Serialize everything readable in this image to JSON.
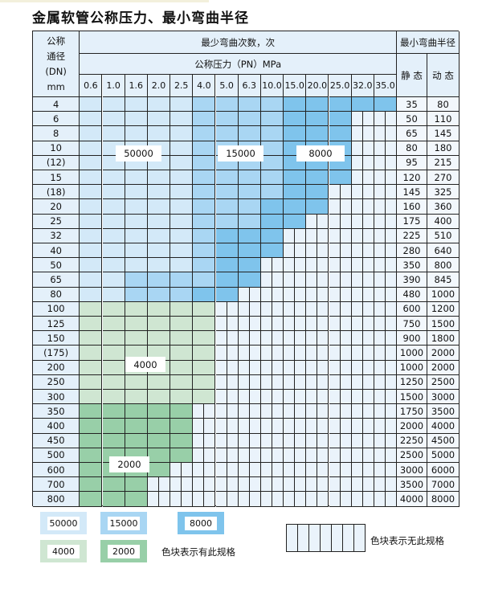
{
  "title": "金属软管公称压力、最小弯曲半径",
  "header": {
    "dn_label": [
      "公称",
      "通径",
      "(DN)",
      "mm"
    ],
    "bend_count": "最少弯曲次数，次",
    "pressure": "公称压力（PN）MPa",
    "radius": "最小弯曲半径",
    "static": "静 态",
    "dynamic": "动 态",
    "pressures": [
      "0.6",
      "1.0",
      "1.6",
      "2.0",
      "2.5",
      "4.0",
      "5.0",
      "6.3",
      "10.0",
      "15.0",
      "20.0",
      "25.0",
      "32.0",
      "35.0"
    ]
  },
  "levels": {
    "A": {
      "value": "50000",
      "color": "#d3e9f8"
    },
    "B": {
      "value": "15000",
      "color": "#a9d6f3"
    },
    "C": {
      "value": "8000",
      "color": "#7fc4ec"
    },
    "D": {
      "value": "4000",
      "color": "#cfe6d2"
    },
    "E": {
      "value": "2000",
      "color": "#98cfa8"
    }
  },
  "rows": [
    {
      "dn": "4",
      "static": "35",
      "dynamic": "80",
      "cells": "AAAAABBBBCCCCC"
    },
    {
      "dn": "6",
      "static": "50",
      "dynamic": "110",
      "cells": "AAAAABBBBCCC--"
    },
    {
      "dn": "8",
      "static": "65",
      "dynamic": "145",
      "cells": "AAAAABBBBCCC--"
    },
    {
      "dn": "10",
      "static": "80",
      "dynamic": "180",
      "cells": "AAAAABBBBCCC--"
    },
    {
      "dn": "(12)",
      "static": "95",
      "dynamic": "215",
      "cells": "AAAAABBBBCCC--"
    },
    {
      "dn": "15",
      "static": "120",
      "dynamic": "270",
      "cells": "AAAAABBBBCCC--"
    },
    {
      "dn": "(18)",
      "static": "145",
      "dynamic": "325",
      "cells": "AAAAABBBBCC---"
    },
    {
      "dn": "20",
      "static": "160",
      "dynamic": "360",
      "cells": "AAAAABBBCCC---"
    },
    {
      "dn": "25",
      "static": "175",
      "dynamic": "400",
      "cells": "AAAAABBBCC----"
    },
    {
      "dn": "32",
      "static": "225",
      "dynamic": "510",
      "cells": "AAAAABCCC-----"
    },
    {
      "dn": "40",
      "static": "280",
      "dynamic": "640",
      "cells": "AAAAABCCC-----"
    },
    {
      "dn": "50",
      "static": "350",
      "dynamic": "800",
      "cells": "AAAAABCC------"
    },
    {
      "dn": "65",
      "static": "390",
      "dynamic": "845",
      "cells": "AABBBBCC------"
    },
    {
      "dn": "80",
      "static": "480",
      "dynamic": "1000",
      "cells": "AABBBCC-------"
    },
    {
      "dn": "100",
      "static": "600",
      "dynamic": "1200",
      "cells": "DDDDDD--------"
    },
    {
      "dn": "125",
      "static": "750",
      "dynamic": "1500",
      "cells": "DDDDDD--------"
    },
    {
      "dn": "150",
      "static": "900",
      "dynamic": "1800",
      "cells": "DDDDDD--------"
    },
    {
      "dn": "(175)",
      "static": "1000",
      "dynamic": "2000",
      "cells": "DDDDDD--------"
    },
    {
      "dn": "200",
      "static": "1000",
      "dynamic": "2000",
      "cells": "DDDDDD--------"
    },
    {
      "dn": "250",
      "static": "1250",
      "dynamic": "2500",
      "cells": "DDDDDD--------"
    },
    {
      "dn": "300",
      "static": "1500",
      "dynamic": "3000",
      "cells": "DDDDDD--------"
    },
    {
      "dn": "350",
      "static": "1750",
      "dynamic": "3500",
      "cells": "EEEEE---------"
    },
    {
      "dn": "400",
      "static": "2000",
      "dynamic": "4000",
      "cells": "EEEEE---------"
    },
    {
      "dn": "450",
      "static": "2250",
      "dynamic": "4500",
      "cells": "EEEEE---------"
    },
    {
      "dn": "500",
      "static": "2500",
      "dynamic": "5000",
      "cells": "EEEEE---------"
    },
    {
      "dn": "600",
      "static": "3000",
      "dynamic": "6000",
      "cells": "EEEE----------"
    },
    {
      "dn": "700",
      "static": "3500",
      "dynamic": "7000",
      "cells": "EEE-----------"
    },
    {
      "dn": "800",
      "static": "4000",
      "dynamic": "8000",
      "cells": "EEE-----------"
    }
  ],
  "region_labels": [
    "50000",
    "15000",
    "8000",
    "4000",
    "2000"
  ],
  "legend": {
    "items": [
      "50000",
      "15000",
      "8000",
      "4000",
      "2000"
    ],
    "has_spec": "色块表示有此规格",
    "no_spec": "色块表示无此规格"
  }
}
